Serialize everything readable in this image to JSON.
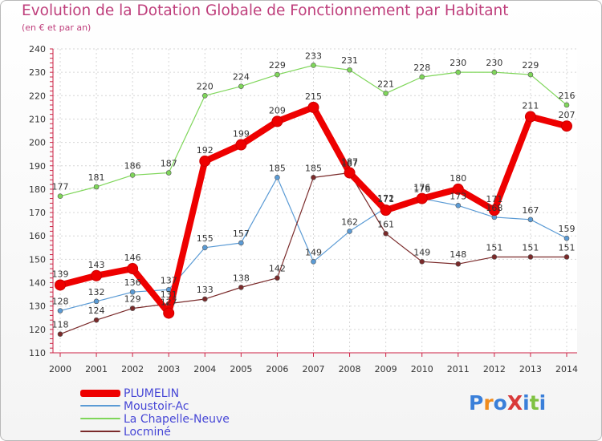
{
  "chart_data": {
    "type": "line",
    "title": "Evolution de la Dotation Globale de Fonctionnement par Habitant",
    "subtitle": "(en € et par an)",
    "categories": [
      "2000",
      "2001",
      "2002",
      "2003",
      "2004",
      "2005",
      "2006",
      "2007",
      "2008",
      "2009",
      "2010",
      "2011",
      "2012",
      "2013",
      "2014"
    ],
    "ylim": [
      110,
      240
    ],
    "yticks": [
      110,
      120,
      130,
      140,
      150,
      160,
      170,
      180,
      190,
      200,
      210,
      220,
      230,
      240
    ],
    "grid": true,
    "legend_position": "bottom-left",
    "series": [
      {
        "name": "La Chapelle-Neuve",
        "color": "#7fd65a",
        "values": [
          177,
          181,
          186,
          187,
          220,
          224,
          229,
          233,
          231,
          221,
          228,
          230,
          230,
          229,
          216
        ]
      },
      {
        "name": "Moustoir-Ac",
        "color": "#5b9bd5",
        "values": [
          128,
          132,
          136,
          137,
          155,
          157,
          185,
          149,
          162,
          172,
          176,
          173,
          168,
          167,
          159
        ]
      },
      {
        "name": "Locminé",
        "color": "#7a2a2a",
        "values": [
          118,
          124,
          129,
          131,
          133,
          138,
          142,
          185,
          187,
          161,
          149,
          148,
          151,
          151,
          151
        ]
      },
      {
        "name": "PLUMELIN",
        "color": "#ee0000",
        "values": [
          139,
          143,
          146,
          127,
          192,
          199,
          209,
          215,
          187,
          171,
          176,
          180,
          171,
          211,
          207
        ]
      }
    ]
  },
  "legend": {
    "items": [
      {
        "label": "PLUMELIN",
        "color": "#ee0000"
      },
      {
        "label": "Moustoir-Ac",
        "color": "#5b9bd5"
      },
      {
        "label": "La Chapelle-Neuve",
        "color": "#7fd65a"
      },
      {
        "label": "Locminé",
        "color": "#7a2a2a"
      }
    ]
  },
  "logo": {
    "text": "ProXiti"
  }
}
